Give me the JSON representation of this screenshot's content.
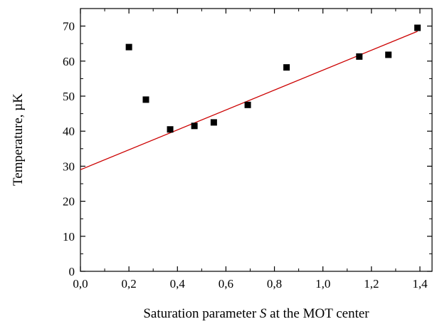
{
  "chart_data": {
    "type": "scatter",
    "xlabel_parts": [
      "Saturation parameter ",
      "S",
      "  at the MOT center"
    ],
    "ylabel": "Temperature, µK",
    "xlim": [
      0.0,
      1.45
    ],
    "ylim": [
      0,
      75
    ],
    "x_ticks": [
      0.0,
      0.2,
      0.4,
      0.6,
      0.8,
      1.0,
      1.2,
      1.4
    ],
    "x_tick_labels": [
      "0,0",
      "0,2",
      "0,4",
      "0,6",
      "0,8",
      "1,0",
      "1,2",
      "1,4"
    ],
    "y_ticks": [
      0,
      10,
      20,
      30,
      40,
      50,
      60,
      70
    ],
    "y_tick_labels": [
      "0",
      "10",
      "20",
      "30",
      "40",
      "50",
      "60",
      "70"
    ],
    "grid": false,
    "series": [
      {
        "kind": "points",
        "color": "#000000",
        "marker": "square",
        "x": [
          0.2,
          0.27,
          0.37,
          0.47,
          0.55,
          0.69,
          0.85,
          1.15,
          1.27,
          1.39
        ],
        "y": [
          64.0,
          49.0,
          40.5,
          41.5,
          42.5,
          47.5,
          58.2,
          61.3,
          61.8,
          69.5
        ]
      },
      {
        "kind": "fit-line",
        "color": "#cc0000",
        "x": [
          0.0,
          1.39
        ],
        "y": [
          29.0,
          68.5
        ]
      }
    ]
  }
}
